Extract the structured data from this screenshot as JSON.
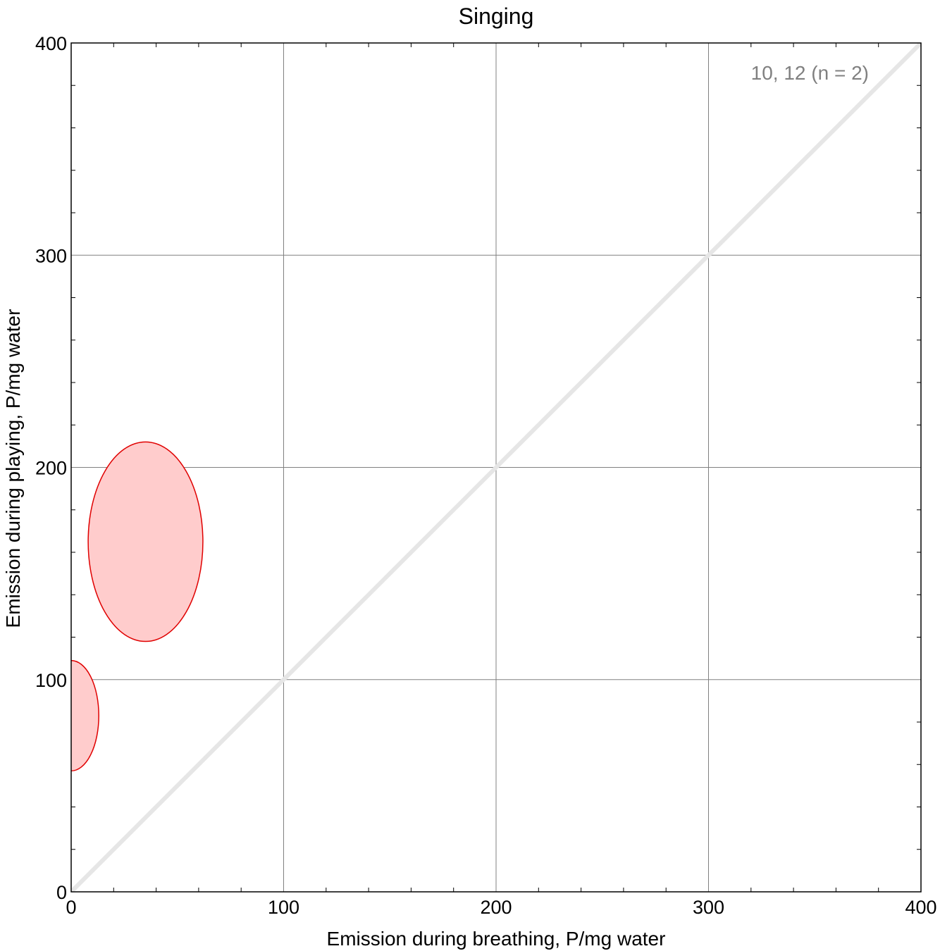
{
  "chart_data": {
    "type": "scatter",
    "title": "Singing",
    "xlabel": "Emission during breathing,   P/mg water",
    "ylabel": "Emission during playing,   P/mg water",
    "xlim": [
      0,
      400
    ],
    "ylim": [
      0,
      400
    ],
    "x_ticks": [
      0,
      100,
      200,
      300,
      400
    ],
    "y_ticks": [
      0,
      100,
      200,
      300,
      400
    ],
    "x_minor_step": 20,
    "y_minor_step": 20,
    "grid": true,
    "annotation": "10, 12  (n = 2)",
    "identity_line": {
      "from": [
        0,
        0
      ],
      "to": [
        400,
        400
      ],
      "color": "#e6e6e6"
    },
    "ellipses": [
      {
        "cx": 0,
        "cy": 83,
        "rx": 13,
        "ry": 26
      },
      {
        "cx": 35,
        "cy": 165,
        "rx": 27,
        "ry": 47
      }
    ],
    "colors": {
      "ellipse_fill": "#ffcccc",
      "ellipse_stroke": "#e00000",
      "grid": "#808080",
      "annotation": "#808080"
    }
  }
}
